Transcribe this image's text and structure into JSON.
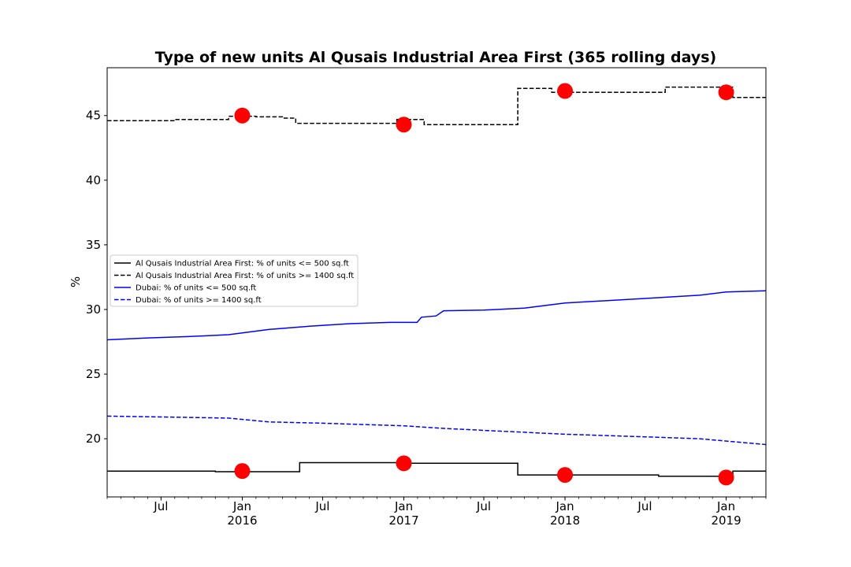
{
  "chart_data": {
    "type": "line",
    "title": "Type of new units Al Qusais Industrial Area First (365 rolling days)",
    "xlabel": "",
    "ylabel": "%",
    "xlim": [
      "2015-03-01",
      "2019-04-01"
    ],
    "ylim": [
      15.5,
      48.7
    ],
    "yticks": [
      20,
      25,
      30,
      35,
      40,
      45
    ],
    "xticks": [
      {
        "date": "2015-07-01",
        "label": "Jul",
        "year": ""
      },
      {
        "date": "2016-01-01",
        "label": "Jan",
        "year": "2016"
      },
      {
        "date": "2016-07-01",
        "label": "Jul",
        "year": ""
      },
      {
        "date": "2017-01-01",
        "label": "Jan",
        "year": "2017"
      },
      {
        "date": "2017-07-01",
        "label": "Jul",
        "year": ""
      },
      {
        "date": "2018-01-01",
        "label": "Jan",
        "year": "2018"
      },
      {
        "date": "2018-07-01",
        "label": "Jul",
        "year": ""
      },
      {
        "date": "2019-01-01",
        "label": "Jan",
        "year": "2019"
      }
    ],
    "grid": false,
    "legend_position": "center-left",
    "series": [
      {
        "name": "Al Qusais Industrial Area First: % of units <= 500 sq.ft",
        "color": "#000000",
        "style": "solid",
        "step": true,
        "points": [
          [
            "2015-03-01",
            17.5
          ],
          [
            "2015-06-01",
            17.5
          ],
          [
            "2015-11-01",
            17.45
          ],
          [
            "2016-04-15",
            17.45
          ],
          [
            "2016-05-10",
            18.15
          ],
          [
            "2016-12-31",
            18.15
          ],
          [
            "2017-01-01",
            18.1
          ],
          [
            "2017-09-15",
            18.1
          ],
          [
            "2017-09-16",
            17.2
          ],
          [
            "2018-07-31",
            17.2
          ],
          [
            "2018-08-01",
            17.1
          ],
          [
            "2019-01-15",
            17.1
          ],
          [
            "2019-01-16",
            17.5
          ],
          [
            "2019-04-01",
            17.5
          ]
        ]
      },
      {
        "name": "Al Qusais Industrial Area First: % of units >= 1400 sq.ft",
        "color": "#000000",
        "style": "dashed",
        "step": true,
        "points": [
          [
            "2015-03-01",
            44.6
          ],
          [
            "2015-08-01",
            44.7
          ],
          [
            "2015-12-01",
            44.95
          ],
          [
            "2016-02-01",
            44.9
          ],
          [
            "2016-04-01",
            44.8
          ],
          [
            "2016-05-01",
            44.4
          ],
          [
            "2016-12-15",
            44.4
          ],
          [
            "2016-12-16",
            44.7
          ],
          [
            "2017-02-15",
            44.7
          ],
          [
            "2017-02-16",
            44.3
          ],
          [
            "2017-09-15",
            44.3
          ],
          [
            "2017-09-16",
            47.1
          ],
          [
            "2017-12-01",
            47.1
          ],
          [
            "2017-12-02",
            46.8
          ],
          [
            "2018-08-15",
            46.8
          ],
          [
            "2018-08-16",
            47.2
          ],
          [
            "2019-01-15",
            47.2
          ],
          [
            "2019-01-16",
            46.4
          ],
          [
            "2019-04-01",
            46.4
          ]
        ]
      },
      {
        "name": "Dubai: % of units <= 500 sq.ft",
        "color": "#0000ff",
        "style": "solid",
        "step": false,
        "points": [
          [
            "2015-03-01",
            27.65
          ],
          [
            "2015-06-01",
            27.8
          ],
          [
            "2015-09-01",
            27.9
          ],
          [
            "2015-12-01",
            28.05
          ],
          [
            "2016-03-01",
            28.45
          ],
          [
            "2016-06-01",
            28.7
          ],
          [
            "2016-09-01",
            28.9
          ],
          [
            "2016-12-01",
            29.0
          ],
          [
            "2017-01-31",
            29.0
          ],
          [
            "2017-02-10",
            29.4
          ],
          [
            "2017-03-15",
            29.5
          ],
          [
            "2017-04-01",
            29.9
          ],
          [
            "2017-07-01",
            29.95
          ],
          [
            "2017-10-01",
            30.1
          ],
          [
            "2018-01-01",
            30.5
          ],
          [
            "2018-07-01",
            30.85
          ],
          [
            "2018-11-01",
            31.1
          ],
          [
            "2019-01-01",
            31.35
          ],
          [
            "2019-04-01",
            31.45
          ]
        ]
      },
      {
        "name": "Dubai: % of units >= 1400 sq.ft",
        "color": "#0000ff",
        "style": "dashed",
        "step": false,
        "points": [
          [
            "2015-03-01",
            21.75
          ],
          [
            "2015-06-01",
            21.7
          ],
          [
            "2015-12-01",
            21.6
          ],
          [
            "2016-03-01",
            21.3
          ],
          [
            "2016-07-01",
            21.2
          ],
          [
            "2016-10-01",
            21.1
          ],
          [
            "2017-01-01",
            21.0
          ],
          [
            "2017-04-01",
            20.8
          ],
          [
            "2017-07-01",
            20.65
          ],
          [
            "2017-10-01",
            20.5
          ],
          [
            "2018-01-01",
            20.35
          ],
          [
            "2018-07-01",
            20.15
          ],
          [
            "2018-11-01",
            20.0
          ],
          [
            "2019-04-01",
            19.55
          ]
        ]
      }
    ],
    "markers": {
      "color": "#ff0000",
      "points": [
        [
          "2016-01-01",
          45.0
        ],
        [
          "2017-01-01",
          44.3
        ],
        [
          "2018-01-01",
          46.9
        ],
        [
          "2019-01-01",
          46.8
        ],
        [
          "2016-01-01",
          17.5
        ],
        [
          "2017-01-01",
          18.1
        ],
        [
          "2018-01-01",
          17.2
        ],
        [
          "2019-01-01",
          17.0
        ]
      ]
    }
  }
}
